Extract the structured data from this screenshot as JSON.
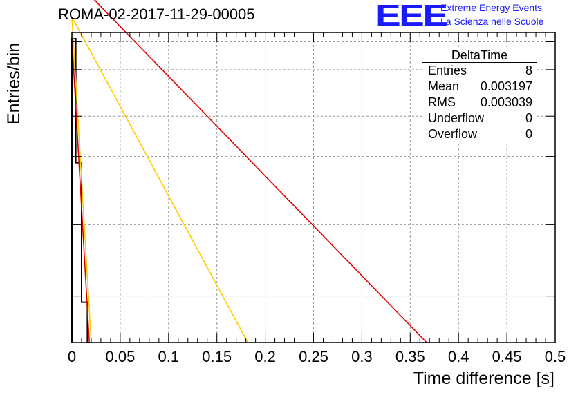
{
  "title": "ROMA-02-2017-11-29-00005",
  "logo": {
    "text": "EEE",
    "line1": "Extreme Energy Events",
    "line2": "La Scienza nelle Scuole",
    "color": "#1a1aff"
  },
  "stats": {
    "title": "DeltaTime",
    "rows": [
      {
        "label": "Entries",
        "value": "8"
      },
      {
        "label": "Mean",
        "value": "0.003197"
      },
      {
        "label": "RMS",
        "value": "0.003039"
      },
      {
        "label": "Underflow",
        "value": "0"
      },
      {
        "label": "Overflow",
        "value": "0"
      }
    ]
  },
  "chart_data": {
    "type": "line",
    "title": "ROMA-02-2017-11-29-00005",
    "xlabel": "Time difference [s]",
    "ylabel": "Entries/bin",
    "xlim": [
      0,
      0.5
    ],
    "x_ticks": [
      "0",
      "0.05",
      "0.1",
      "0.15",
      "0.2",
      "0.25",
      "0.3",
      "0.35",
      "0.4",
      "0.45",
      "0.5"
    ],
    "ylim": [
      0,
      1
    ],
    "grid": true,
    "series": [
      {
        "color": "#000000",
        "kind": "histogram",
        "points": [
          [
            0.0,
            0.0
          ],
          [
            0.0,
            0.98
          ],
          [
            0.004,
            0.98
          ],
          [
            0.004,
            0.58
          ],
          [
            0.01,
            0.58
          ],
          [
            0.01,
            0.13
          ],
          [
            0.016,
            0.13
          ],
          [
            0.016,
            0.0
          ]
        ]
      },
      {
        "color": "#ffcc00",
        "points": [
          [
            0.0,
            1.05
          ],
          [
            0.02,
            0.0
          ]
        ]
      },
      {
        "color": "#ffcc00",
        "points": [
          [
            0.0,
            1.05
          ],
          [
            0.182,
            0.0
          ]
        ]
      },
      {
        "color": "#e00000",
        "points": [
          [
            0.0,
            0.98
          ],
          [
            0.018,
            0.0
          ]
        ]
      },
      {
        "color": "#e00000",
        "points": [
          [
            0.0,
            1.18
          ],
          [
            0.367,
            0.0
          ]
        ]
      }
    ]
  }
}
